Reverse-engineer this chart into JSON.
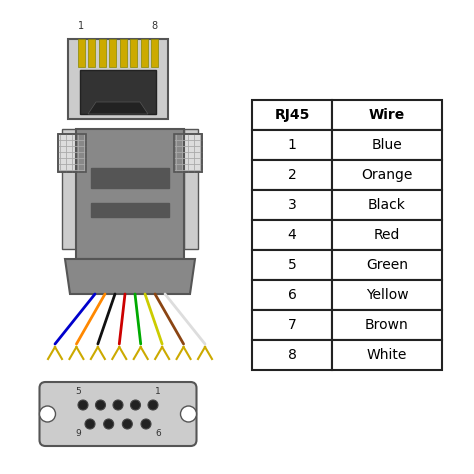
{
  "bg_color": "#ffffff",
  "table_headers": [
    "RJ45",
    "Wire"
  ],
  "table_rows": [
    [
      "1",
      "Blue"
    ],
    [
      "2",
      "Orange"
    ],
    [
      "3",
      "Black"
    ],
    [
      "4",
      "Red"
    ],
    [
      "5",
      "Green"
    ],
    [
      "6",
      "Yellow"
    ],
    [
      "7",
      "Brown"
    ],
    [
      "8",
      "White"
    ]
  ],
  "wire_colors": [
    "#0000cc",
    "#ff8800",
    "#111111",
    "#cc0000",
    "#00aa00",
    "#cccc00",
    "#8B4513",
    "#dddddd"
  ],
  "connector_gray": "#888888",
  "connector_body": "#888888",
  "connector_light": "#cccccc",
  "connector_dark": "#555555",
  "ear_gray": "#bbbbbb",
  "rj45_bg": "#c0c0c0",
  "rj45_label_1": "1",
  "rj45_label_8": "8",
  "db9_label_5": "5",
  "db9_label_1": "1",
  "db9_label_9": "9",
  "db9_label_6": "6"
}
